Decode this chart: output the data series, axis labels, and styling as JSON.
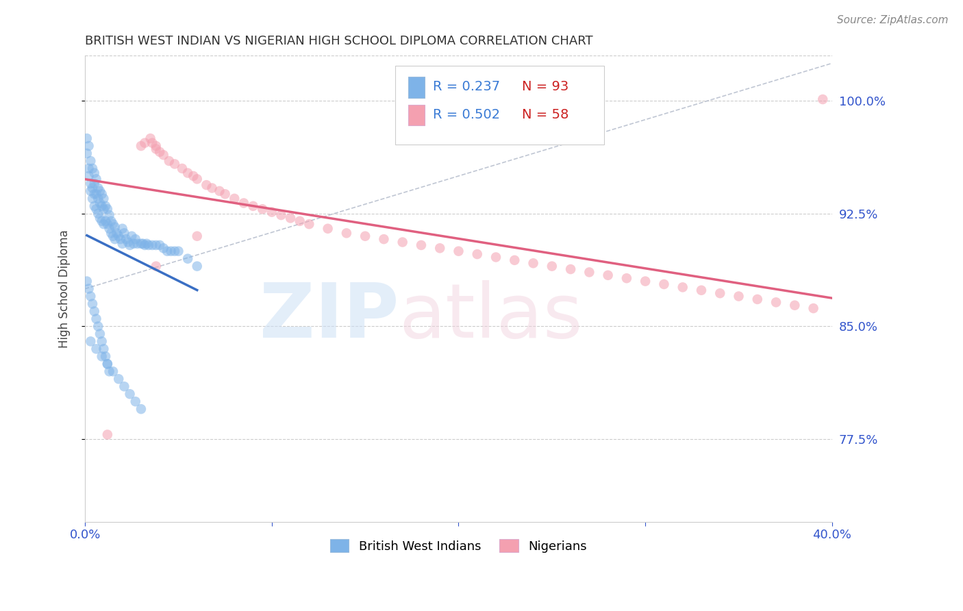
{
  "title": "BRITISH WEST INDIAN VS NIGERIAN HIGH SCHOOL DIPLOMA CORRELATION CHART",
  "source": "Source: ZipAtlas.com",
  "ylabel": "High School Diploma",
  "right_yticks": [
    0.775,
    0.85,
    0.925,
    1.0
  ],
  "right_yticklabels": [
    "77.5%",
    "85.0%",
    "92.5%",
    "100.0%"
  ],
  "xlim": [
    0.0,
    0.4
  ],
  "ylim": [
    0.72,
    1.03
  ],
  "legend_blue_r": "R = 0.237",
  "legend_blue_n": "N = 93",
  "legend_pink_r": "R = 0.502",
  "legend_pink_n": "N = 58",
  "blue_color": "#7EB3E8",
  "pink_color": "#F4A0B0",
  "blue_line_color": "#3A6FC4",
  "pink_line_color": "#E06080",
  "blue_label_color": "#3A7BD5",
  "red_label_color": "#CC2222",
  "marker_size": 110,
  "marker_alpha": 0.55,
  "background_color": "#ffffff",
  "grid_color": "#cccccc",
  "bwi_x": [
    0.001,
    0.001,
    0.002,
    0.002,
    0.002,
    0.003,
    0.003,
    0.003,
    0.004,
    0.004,
    0.004,
    0.005,
    0.005,
    0.005,
    0.005,
    0.006,
    0.006,
    0.006,
    0.007,
    0.007,
    0.007,
    0.008,
    0.008,
    0.008,
    0.009,
    0.009,
    0.009,
    0.01,
    0.01,
    0.01,
    0.011,
    0.011,
    0.012,
    0.012,
    0.013,
    0.013,
    0.014,
    0.014,
    0.015,
    0.015,
    0.016,
    0.016,
    0.017,
    0.018,
    0.019,
    0.02,
    0.02,
    0.021,
    0.022,
    0.023,
    0.024,
    0.025,
    0.026,
    0.027,
    0.028,
    0.03,
    0.031,
    0.032,
    0.033,
    0.034,
    0.036,
    0.038,
    0.04,
    0.042,
    0.044,
    0.046,
    0.048,
    0.05,
    0.055,
    0.06,
    0.001,
    0.002,
    0.003,
    0.004,
    0.005,
    0.006,
    0.007,
    0.008,
    0.009,
    0.01,
    0.011,
    0.012,
    0.013,
    0.003,
    0.006,
    0.009,
    0.012,
    0.015,
    0.018,
    0.021,
    0.024,
    0.027,
    0.03
  ],
  "bwi_y": [
    0.975,
    0.965,
    0.97,
    0.955,
    0.95,
    0.96,
    0.945,
    0.94,
    0.955,
    0.942,
    0.935,
    0.952,
    0.945,
    0.938,
    0.93,
    0.948,
    0.938,
    0.928,
    0.942,
    0.935,
    0.925,
    0.94,
    0.932,
    0.922,
    0.938,
    0.93,
    0.92,
    0.935,
    0.928,
    0.918,
    0.93,
    0.92,
    0.928,
    0.918,
    0.924,
    0.915,
    0.92,
    0.912,
    0.918,
    0.91,
    0.916,
    0.908,
    0.912,
    0.91,
    0.908,
    0.915,
    0.905,
    0.912,
    0.908,
    0.906,
    0.904,
    0.91,
    0.905,
    0.908,
    0.905,
    0.905,
    0.905,
    0.904,
    0.905,
    0.904,
    0.904,
    0.904,
    0.904,
    0.902,
    0.9,
    0.9,
    0.9,
    0.9,
    0.895,
    0.89,
    0.88,
    0.875,
    0.87,
    0.865,
    0.86,
    0.855,
    0.85,
    0.845,
    0.84,
    0.835,
    0.83,
    0.825,
    0.82,
    0.84,
    0.835,
    0.83,
    0.825,
    0.82,
    0.815,
    0.81,
    0.805,
    0.8,
    0.795
  ],
  "nig_x": [
    0.012,
    0.03,
    0.032,
    0.035,
    0.036,
    0.038,
    0.038,
    0.04,
    0.042,
    0.045,
    0.048,
    0.052,
    0.055,
    0.058,
    0.06,
    0.065,
    0.068,
    0.072,
    0.075,
    0.08,
    0.085,
    0.09,
    0.095,
    0.1,
    0.105,
    0.11,
    0.115,
    0.12,
    0.13,
    0.14,
    0.15,
    0.16,
    0.17,
    0.18,
    0.19,
    0.2,
    0.21,
    0.22,
    0.23,
    0.24,
    0.25,
    0.26,
    0.27,
    0.28,
    0.29,
    0.3,
    0.31,
    0.32,
    0.33,
    0.34,
    0.35,
    0.36,
    0.37,
    0.38,
    0.39,
    0.395,
    0.038,
    0.06
  ],
  "nig_y": [
    0.778,
    0.97,
    0.972,
    0.975,
    0.972,
    0.97,
    0.968,
    0.966,
    0.964,
    0.96,
    0.958,
    0.955,
    0.952,
    0.95,
    0.948,
    0.944,
    0.942,
    0.94,
    0.938,
    0.935,
    0.932,
    0.93,
    0.928,
    0.926,
    0.924,
    0.922,
    0.92,
    0.918,
    0.915,
    0.912,
    0.91,
    0.908,
    0.906,
    0.904,
    0.902,
    0.9,
    0.898,
    0.896,
    0.894,
    0.892,
    0.89,
    0.888,
    0.886,
    0.884,
    0.882,
    0.88,
    0.878,
    0.876,
    0.874,
    0.872,
    0.87,
    0.868,
    0.866,
    0.864,
    0.862,
    1.001,
    0.89,
    0.91
  ]
}
